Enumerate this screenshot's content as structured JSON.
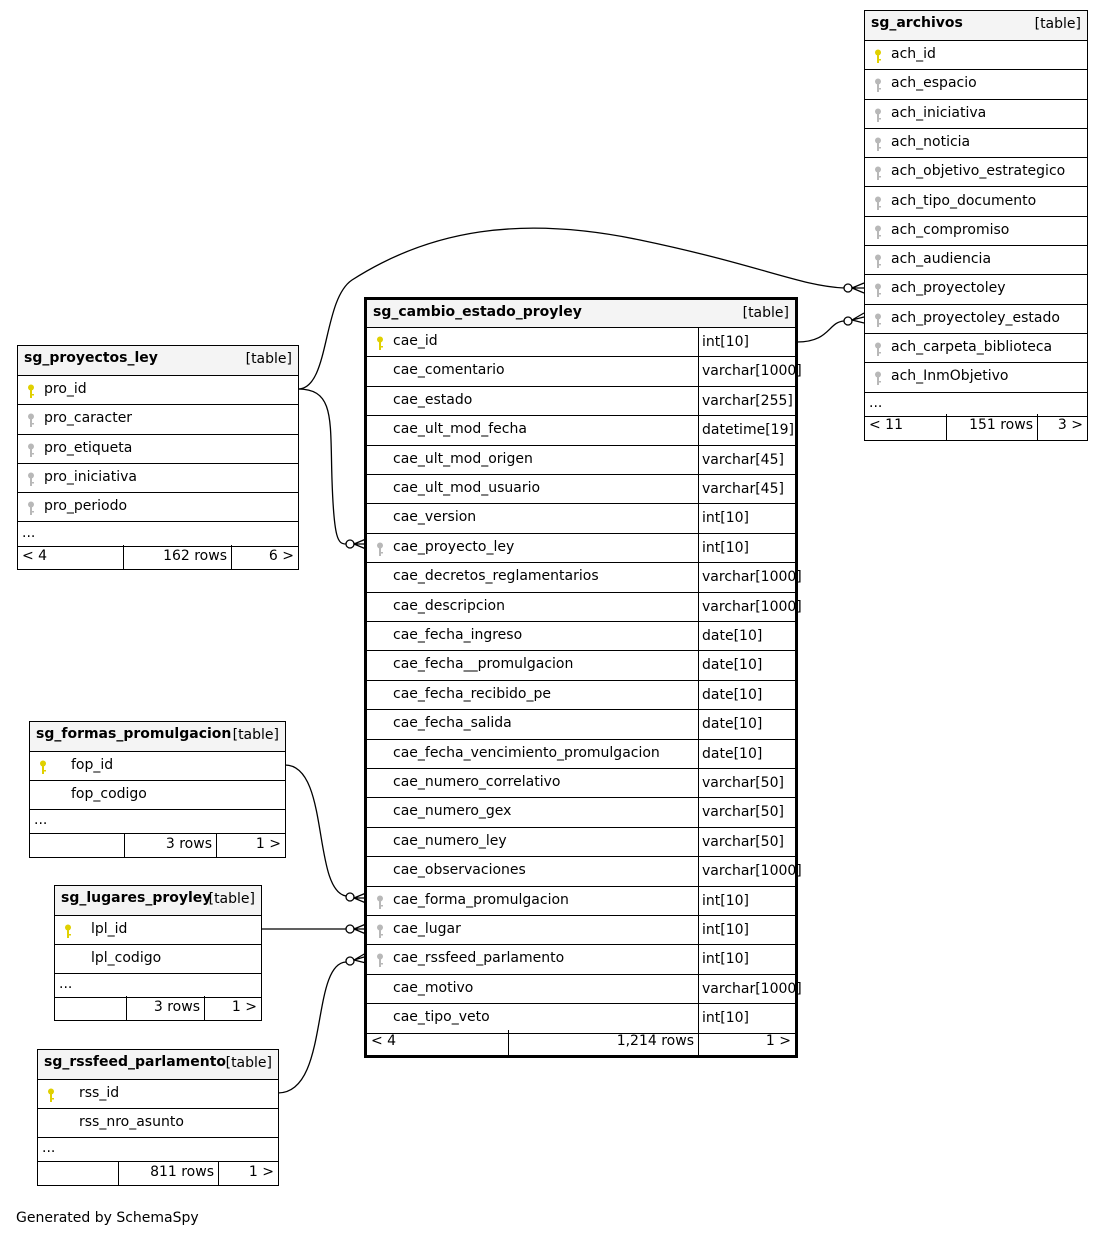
{
  "tables": [
    {
      "name": "sg_archivos",
      "type": "[table]",
      "columns": [
        {
          "name": "ach_id",
          "key": "primary"
        },
        {
          "name": "ach_espacio",
          "key": "foreign"
        },
        {
          "name": "ach_iniciativa",
          "key": "foreign"
        },
        {
          "name": "ach_noticia",
          "key": "foreign"
        },
        {
          "name": "ach_objetivo_estrategico",
          "key": "foreign"
        },
        {
          "name": "ach_tipo_documento",
          "key": "foreign"
        },
        {
          "name": "ach_compromiso",
          "key": "foreign"
        },
        {
          "name": "ach_audiencia",
          "key": "foreign"
        },
        {
          "name": "ach_proyectoley",
          "key": "foreign"
        },
        {
          "name": "ach_proyectoley_estado",
          "key": "foreign"
        },
        {
          "name": "ach_carpeta_biblioteca",
          "key": "foreign"
        },
        {
          "name": "ach_InmObjetivo",
          "key": "foreign"
        }
      ],
      "more": "...",
      "parents": "< 11",
      "rows": "151 rows",
      "children": "3 >"
    },
    {
      "name": "sg_cambio_estado_proyley",
      "type": "[table]",
      "columns": [
        {
          "name": "cae_id",
          "type": "int[10]",
          "key": "primary"
        },
        {
          "name": "cae_comentario",
          "type": "varchar[1000]"
        },
        {
          "name": "cae_estado",
          "type": "varchar[255]"
        },
        {
          "name": "cae_ult_mod_fecha",
          "type": "datetime[19]"
        },
        {
          "name": "cae_ult_mod_origen",
          "type": "varchar[45]"
        },
        {
          "name": "cae_ult_mod_usuario",
          "type": "varchar[45]"
        },
        {
          "name": "cae_version",
          "type": "int[10]"
        },
        {
          "name": "cae_proyecto_ley",
          "type": "int[10]",
          "key": "foreign"
        },
        {
          "name": "cae_decretos_reglamentarios",
          "type": "varchar[1000]"
        },
        {
          "name": "cae_descripcion",
          "type": "varchar[1000]"
        },
        {
          "name": "cae_fecha_ingreso",
          "type": "date[10]"
        },
        {
          "name": "cae_fecha__promulgacion",
          "type": "date[10]"
        },
        {
          "name": "cae_fecha_recibido_pe",
          "type": "date[10]"
        },
        {
          "name": "cae_fecha_salida",
          "type": "date[10]"
        },
        {
          "name": "cae_fecha_vencimiento_promulgacion",
          "type": "date[10]"
        },
        {
          "name": "cae_numero_correlativo",
          "type": "varchar[50]"
        },
        {
          "name": "cae_numero_gex",
          "type": "varchar[50]"
        },
        {
          "name": "cae_numero_ley",
          "type": "varchar[50]"
        },
        {
          "name": "cae_observaciones",
          "type": "varchar[1000]"
        },
        {
          "name": "cae_forma_promulgacion",
          "type": "int[10]",
          "key": "foreign"
        },
        {
          "name": "cae_lugar",
          "type": "int[10]",
          "key": "foreign"
        },
        {
          "name": "cae_rssfeed_parlamento",
          "type": "int[10]",
          "key": "foreign"
        },
        {
          "name": "cae_motivo",
          "type": "varchar[1000]"
        },
        {
          "name": "cae_tipo_veto",
          "type": "int[10]"
        }
      ],
      "parents": "< 4",
      "rows": "1,214 rows",
      "children": "1 >"
    },
    {
      "name": "sg_proyectos_ley",
      "type": "[table]",
      "columns": [
        {
          "name": "pro_id",
          "key": "primary"
        },
        {
          "name": "pro_caracter",
          "key": "foreign"
        },
        {
          "name": "pro_etiqueta",
          "key": "foreign"
        },
        {
          "name": "pro_iniciativa",
          "key": "foreign"
        },
        {
          "name": "pro_periodo",
          "key": "foreign"
        }
      ],
      "more": "...",
      "parents": "< 4",
      "rows": "162 rows",
      "children": "6 >"
    },
    {
      "name": "sg_formas_promulgacion",
      "type": "[table]",
      "columns": [
        {
          "name": "fop_id",
          "key": "primary"
        },
        {
          "name": "fop_codigo"
        }
      ],
      "more": "...",
      "parents": "",
      "rows": "3 rows",
      "children": "1 >"
    },
    {
      "name": "sg_lugares_proyley",
      "type": "[table]",
      "columns": [
        {
          "name": "lpl_id",
          "key": "primary"
        },
        {
          "name": "lpl_codigo"
        }
      ],
      "more": "...",
      "parents": "",
      "rows": "3 rows",
      "children": "1 >"
    },
    {
      "name": "sg_rssfeed_parlamento",
      "type": "[table]",
      "columns": [
        {
          "name": "rss_id",
          "key": "primary"
        },
        {
          "name": "rss_nro_asunto"
        }
      ],
      "more": "...",
      "parents": "",
      "rows": "811 rows",
      "children": "1 >"
    }
  ],
  "colors": {
    "primary_key": "#e0d000",
    "foreign_key": "#b8b8b8",
    "header_bg": "#f4f4f4"
  },
  "footer": "Generated by SchemaSpy"
}
